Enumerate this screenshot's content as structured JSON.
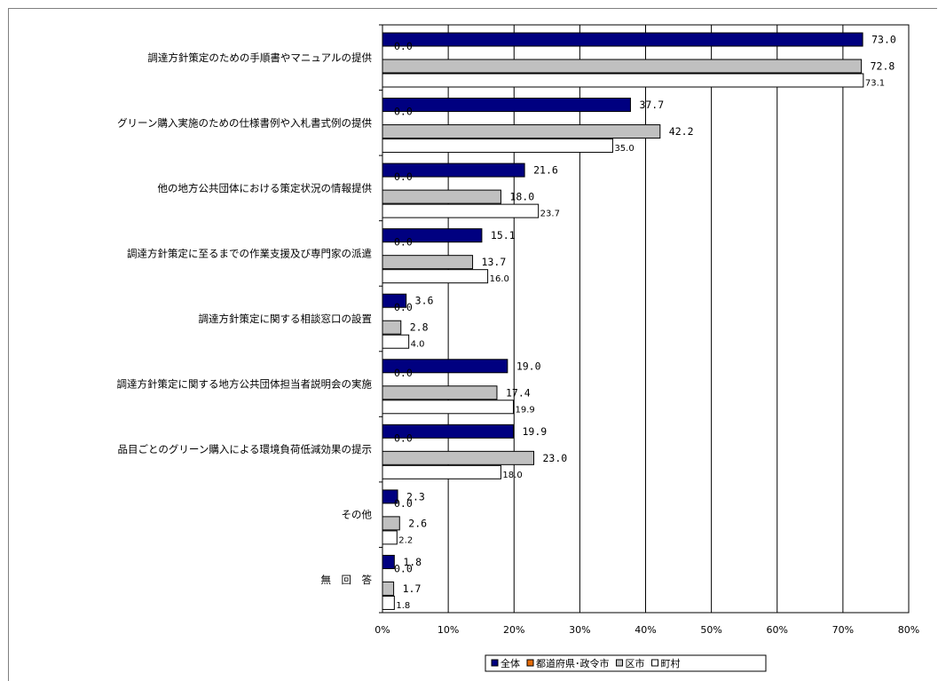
{
  "chart_data": {
    "type": "bar",
    "orientation": "horizontal",
    "title": "",
    "xlabel": "",
    "ylabel": "",
    "xlim": [
      0,
      80
    ],
    "x_ticks": [
      "0%",
      "10%",
      "20%",
      "30%",
      "40%",
      "50%",
      "60%",
      "70%",
      "80%"
    ],
    "grid": true,
    "legend_position": "bottom",
    "categories": [
      "調達方針策定のための手順書やマニュアルの提供",
      "グリーン購入実施のための仕様書例や入札書式例の提供",
      "他の地方公共団体における策定状況の情報提供",
      "調達方針策定に至るまでの作業支援及び専門家の派遣",
      "調達方針策定に関する相談窓口の設置",
      "調達方針策定に関する地方公共団体担当者説明会の実施",
      "品目ごとのグリーン購入による環境負荷低減効果の提示",
      "その他",
      "無　回　答"
    ],
    "series": [
      {
        "name": "全体",
        "color": "#000080",
        "values": [
          73.0,
          37.7,
          21.6,
          15.1,
          3.6,
          19.0,
          19.9,
          2.3,
          1.8
        ],
        "labels": [
          "73.0",
          "37.7",
          "21.6",
          "15.1",
          "3.6",
          "19.0",
          "19.9",
          "2.3",
          "1.8"
        ]
      },
      {
        "name": "都道府県･政令市",
        "color": "#e46c0a",
        "values": [
          0.0,
          0.0,
          0.0,
          0.0,
          0.0,
          0.0,
          0.0,
          0.0,
          0.0
        ],
        "labels": [
          "0.0",
          "0.0",
          "0.0",
          "0.0",
          "0.0",
          "0.0",
          "0.0",
          "0.0",
          "0.0"
        ]
      },
      {
        "name": "区市",
        "color": "#c0c0c0",
        "values": [
          72.8,
          42.2,
          18.0,
          13.7,
          2.8,
          17.4,
          23.0,
          2.6,
          1.7
        ],
        "labels": [
          "72.8",
          "42.2",
          "18.0",
          "13.7",
          "2.8",
          "17.4",
          "23.0",
          "2.6",
          "1.7"
        ]
      },
      {
        "name": "町村",
        "color": "#ffffff",
        "values": [
          73.1,
          35.0,
          23.7,
          16.0,
          4.0,
          19.9,
          18.0,
          2.2,
          1.8
        ],
        "labels": [
          "73.1",
          "35.0",
          "23.7",
          "16.0",
          "4.0",
          "19.9",
          "18.0",
          "2.2",
          "1.8"
        ]
      }
    ]
  }
}
